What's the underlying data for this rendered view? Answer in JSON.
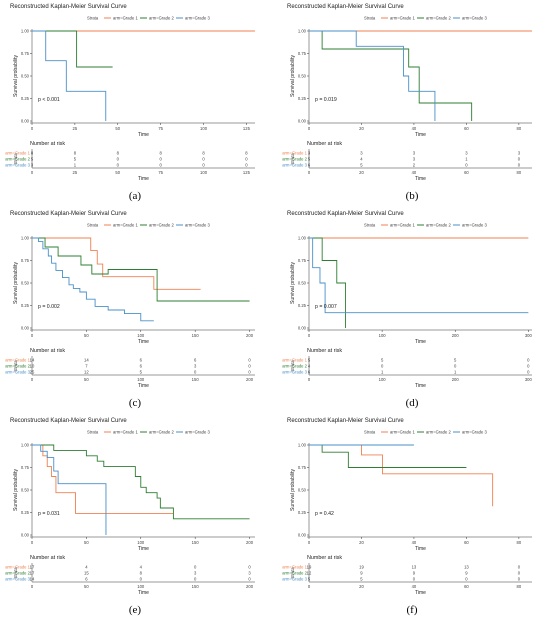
{
  "figure": {
    "panels": [
      "(a)",
      "(b)",
      "(c)",
      "(d)",
      "(e)",
      "(f)"
    ]
  },
  "common": {
    "title": "Reconstructed Kaplan-Meier Survival Curve",
    "legend_title": "Strata",
    "strata_labels": [
      "arm=Grade 1",
      "arm=Grade 2",
      "arm=Grade 3"
    ],
    "risk_table_title": "Number at risk",
    "xlabel": "Time",
    "ylabel": "Survival probability",
    "risk_ylabel": "Strata",
    "risk_row_labels": [
      "arm=Grade 1",
      "arm=Grade 2",
      "arm=Grade 3"
    ],
    "colors": [
      "#f08050",
      "#2e7d32",
      "#4a90c8"
    ]
  },
  "chart_data": [
    {
      "panel": "(a)",
      "type": "line",
      "title": "Reconstructed Kaplan-Meier Survival Curve",
      "xlabel": "Time",
      "ylabel": "Survival probability",
      "xlim": [
        0,
        130
      ],
      "ylim": [
        0,
        1
      ],
      "xticks": [
        0,
        25,
        50,
        75,
        100,
        125
      ],
      "yticks": [
        0,
        0.25,
        0.5,
        0.75,
        1.0
      ],
      "tick_labels_x": [
        "0",
        "25",
        "50",
        "75",
        "100",
        "125"
      ],
      "tick_labels_y": [
        "0.00",
        "0.25",
        "0.50",
        "0.75",
        "1.00"
      ],
      "pvalue": "p < 0.001",
      "series": [
        {
          "name": "arm=Grade 1",
          "steps": [
            [
              0,
              1.0
            ],
            [
              130,
              1.0
            ]
          ]
        },
        {
          "name": "arm=Grade 2",
          "steps": [
            [
              0,
              1.0
            ],
            [
              26,
              0.6
            ],
            [
              47,
              0.6
            ]
          ]
        },
        {
          "name": "arm=Grade 3",
          "steps": [
            [
              0,
              1.0
            ],
            [
              8,
              0.67
            ],
            [
              20,
              0.33
            ],
            [
              43,
              0.0
            ]
          ]
        }
      ],
      "risk": {
        "times": [
          0,
          25,
          50,
          75,
          100,
          125
        ],
        "rows": [
          [
            "8",
            "8",
            "8",
            "8",
            "8",
            "8"
          ],
          [
            "5",
            "5",
            "0",
            "0",
            "0",
            "0"
          ],
          [
            "3",
            "1",
            "0",
            "0",
            "0",
            "0"
          ]
        ]
      }
    },
    {
      "panel": "(b)",
      "type": "line",
      "title": "Reconstructed Kaplan-Meier Survival Curve",
      "xlabel": "Time",
      "ylabel": "Survival probability",
      "xlim": [
        0,
        85
      ],
      "ylim": [
        0,
        1
      ],
      "xticks": [
        0,
        20,
        40,
        60,
        80
      ],
      "yticks": [
        0,
        0.25,
        0.5,
        0.75,
        1.0
      ],
      "tick_labels_x": [
        "0",
        "20",
        "40",
        "60",
        "80"
      ],
      "tick_labels_y": [
        "0.00",
        "0.25",
        "0.50",
        "0.75",
        "1.00"
      ],
      "pvalue": "p = 0.019",
      "series": [
        {
          "name": "arm=Grade 1",
          "steps": [
            [
              0,
              1.0
            ],
            [
              85,
              1.0
            ]
          ]
        },
        {
          "name": "arm=Grade 2",
          "steps": [
            [
              0,
              1.0
            ],
            [
              5,
              0.8
            ],
            [
              35,
              0.8
            ],
            [
              38,
              0.6
            ],
            [
              42,
              0.2
            ],
            [
              62,
              0.0
            ]
          ]
        },
        {
          "name": "arm=Grade 3",
          "steps": [
            [
              0,
              1.0
            ],
            [
              18,
              0.83
            ],
            [
              36,
              0.5
            ],
            [
              38,
              0.33
            ],
            [
              48,
              0.0
            ]
          ]
        }
      ],
      "risk": {
        "times": [
          0,
          20,
          40,
          60,
          80
        ],
        "rows": [
          [
            "3",
            "3",
            "3",
            "3",
            "3"
          ],
          [
            "5",
            "4",
            "3",
            "1",
            "0"
          ],
          [
            "6",
            "5",
            "2",
            "0",
            "0"
          ]
        ]
      }
    },
    {
      "panel": "(c)",
      "type": "line",
      "title": "Reconstructed Kaplan-Meier Survival Curve",
      "xlabel": "Time",
      "ylabel": "Survival probability",
      "xlim": [
        0,
        205
      ],
      "ylim": [
        0,
        1
      ],
      "xticks": [
        0,
        50,
        100,
        150,
        200
      ],
      "yticks": [
        0,
        0.25,
        0.5,
        0.75,
        1.0
      ],
      "tick_labels_x": [
        "0",
        "50",
        "100",
        "150",
        "200"
      ],
      "tick_labels_y": [
        "0.00",
        "0.25",
        "0.50",
        "0.75",
        "1.00"
      ],
      "pvalue": "p = 0.002",
      "series": [
        {
          "name": "arm=Grade 1",
          "steps": [
            [
              0,
              1.0
            ],
            [
              54,
              0.86
            ],
            [
              60,
              0.71
            ],
            [
              65,
              0.57
            ],
            [
              112,
              0.43
            ],
            [
              155,
              0.43
            ]
          ]
        },
        {
          "name": "arm=Grade 2",
          "steps": [
            [
              0,
              1.0
            ],
            [
              12,
              0.9
            ],
            [
              24,
              0.8
            ],
            [
              45,
              0.7
            ],
            [
              55,
              0.6
            ],
            [
              70,
              0.65
            ],
            [
              115,
              0.3
            ],
            [
              200,
              0.3
            ]
          ]
        },
        {
          "name": "arm=Grade 3",
          "steps": [
            [
              0,
              1.0
            ],
            [
              6,
              0.96
            ],
            [
              10,
              0.88
            ],
            [
              15,
              0.8
            ],
            [
              18,
              0.72
            ],
            [
              22,
              0.64
            ],
            [
              28,
              0.56
            ],
            [
              34,
              0.48
            ],
            [
              38,
              0.44
            ],
            [
              44,
              0.4
            ],
            [
              50,
              0.32
            ],
            [
              58,
              0.24
            ],
            [
              70,
              0.2
            ],
            [
              85,
              0.16
            ],
            [
              100,
              0.08
            ],
            [
              112,
              0.08
            ]
          ]
        }
      ],
      "risk": {
        "times": [
          0,
          50,
          100,
          150,
          200
        ],
        "rows": [
          [
            "14",
            "14",
            "6",
            "6",
            "0"
          ],
          [
            "10",
            "7",
            "6",
            "3",
            "0"
          ],
          [
            "25",
            "12",
            "5",
            "0",
            "0"
          ]
        ]
      }
    },
    {
      "panel": "(d)",
      "type": "line",
      "title": "Reconstructed Kaplan-Meier Survival Curve",
      "xlabel": "Time",
      "ylabel": "Survival probability",
      "xlim": [
        0,
        305
      ],
      "ylim": [
        0,
        1
      ],
      "xticks": [
        0,
        100,
        200,
        300
      ],
      "yticks": [
        0,
        0.25,
        0.5,
        0.75,
        1.0
      ],
      "tick_labels_x": [
        "0",
        "100",
        "200",
        "300"
      ],
      "tick_labels_y": [
        "0.00",
        "0.25",
        "0.50",
        "0.75",
        "1.00"
      ],
      "pvalue": "p = 0.007",
      "series": [
        {
          "name": "arm=Grade 1",
          "steps": [
            [
              0,
              1.0
            ],
            [
              300,
              1.0
            ]
          ]
        },
        {
          "name": "arm=Grade 2",
          "steps": [
            [
              0,
              1.0
            ],
            [
              18,
              0.75
            ],
            [
              38,
              0.5
            ],
            [
              50,
              0.0
            ]
          ]
        },
        {
          "name": "arm=Grade 3",
          "steps": [
            [
              0,
              1.0
            ],
            [
              5,
              0.67
            ],
            [
              15,
              0.5
            ],
            [
              22,
              0.17
            ],
            [
              300,
              0.17
            ]
          ]
        }
      ],
      "risk": {
        "times": [
          0,
          100,
          200,
          300
        ],
        "rows": [
          [
            "5",
            "5",
            "5",
            "0"
          ],
          [
            "4",
            "0",
            "0",
            "0"
          ],
          [
            "6",
            "1",
            "1",
            "0"
          ]
        ]
      }
    },
    {
      "panel": "(e)",
      "type": "line",
      "title": "Reconstructed Kaplan-Meier Survival Curve",
      "xlabel": "Time",
      "ylabel": "Survival probability",
      "xlim": [
        0,
        205
      ],
      "ylim": [
        0,
        1
      ],
      "xticks": [
        0,
        50,
        100,
        150,
        200
      ],
      "yticks": [
        0,
        0.25,
        0.5,
        0.75,
        1.0
      ],
      "tick_labels_x": [
        "0",
        "50",
        "100",
        "150",
        "200"
      ],
      "tick_labels_y": [
        "0.00",
        "0.25",
        "0.50",
        "0.75",
        "1.00"
      ],
      "pvalue": "p = 0.031",
      "series": [
        {
          "name": "arm=Grade 1",
          "steps": [
            [
              0,
              1.0
            ],
            [
              10,
              0.88
            ],
            [
              14,
              0.76
            ],
            [
              18,
              0.65
            ],
            [
              22,
              0.47
            ],
            [
              40,
              0.24
            ],
            [
              130,
              0.24
            ]
          ]
        },
        {
          "name": "arm=Grade 2",
          "steps": [
            [
              0,
              1.0
            ],
            [
              20,
              0.94
            ],
            [
              50,
              0.88
            ],
            [
              60,
              0.82
            ],
            [
              66,
              0.76
            ],
            [
              95,
              0.65
            ],
            [
              100,
              0.53
            ],
            [
              105,
              0.47
            ],
            [
              115,
              0.41
            ],
            [
              118,
              0.3
            ],
            [
              130,
              0.18
            ],
            [
              200,
              0.18
            ]
          ]
        },
        {
          "name": "arm=Grade 3",
          "steps": [
            [
              0,
              1.0
            ],
            [
              8,
              0.93
            ],
            [
              14,
              0.86
            ],
            [
              20,
              0.71
            ],
            [
              24,
              0.57
            ],
            [
              68,
              0.0
            ]
          ]
        }
      ],
      "risk": {
        "times": [
          0,
          50,
          100,
          150,
          200
        ],
        "rows": [
          [
            "17",
            "4",
            "4",
            "0",
            "0"
          ],
          [
            "17",
            "15",
            "8",
            "3",
            "3"
          ],
          [
            "14",
            "6",
            "0",
            "0",
            "0"
          ]
        ]
      }
    },
    {
      "panel": "(f)",
      "type": "line",
      "title": "Reconstructed Kaplan-Meier Survival Curve",
      "xlabel": "Time",
      "ylabel": "Survival probability",
      "xlim": [
        0,
        85
      ],
      "ylim": [
        0,
        1
      ],
      "xticks": [
        0,
        20,
        40,
        60,
        80
      ],
      "yticks": [
        0,
        0.25,
        0.5,
        0.75,
        1.0
      ],
      "tick_labels_x": [
        "0",
        "20",
        "40",
        "60",
        "80"
      ],
      "tick_labels_y": [
        "0.00",
        "0.25",
        "0.50",
        "0.75",
        "1.00"
      ],
      "pvalue": "p = 0.42",
      "series": [
        {
          "name": "arm=Grade 1",
          "steps": [
            [
              0,
              1.0
            ],
            [
              20,
              0.89
            ],
            [
              28,
              0.68
            ],
            [
              68,
              0.68
            ],
            [
              70,
              0.32
            ]
          ]
        },
        {
          "name": "arm=Grade 2",
          "steps": [
            [
              0,
              1.0
            ],
            [
              5,
              0.92
            ],
            [
              15,
              0.75
            ],
            [
              60,
              0.75
            ]
          ]
        },
        {
          "name": "arm=Grade 3",
          "steps": [
            [
              0,
              1.0
            ],
            [
              40,
              1.0
            ]
          ]
        }
      ],
      "risk": {
        "times": [
          0,
          20,
          40,
          60,
          80
        ],
        "rows": [
          [
            "19",
            "19",
            "13",
            "13",
            "0"
          ],
          [
            "12",
            "9",
            "9",
            "9",
            "0"
          ],
          [
            "5",
            "5",
            "0",
            "0",
            "0"
          ]
        ]
      }
    }
  ]
}
